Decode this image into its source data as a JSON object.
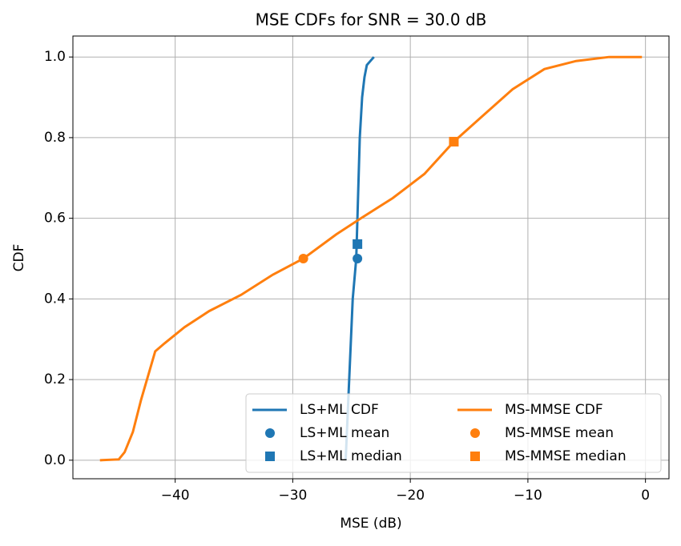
{
  "chart_data": {
    "type": "line",
    "title": "MSE CDFs for SNR = 30.0 dB",
    "x_label": "MSE (dB)",
    "y_label": "CDF",
    "xlim": [
      -48.7,
      2
    ],
    "ylim": [
      -0.046,
      1.052
    ],
    "xticks": [
      {
        "value": -40,
        "label": "−40"
      },
      {
        "value": -30,
        "label": "−30"
      },
      {
        "value": -20,
        "label": "−20"
      },
      {
        "value": -10,
        "label": "−10"
      },
      {
        "value": 0,
        "label": "0"
      }
    ],
    "yticks": [
      {
        "value": 0,
        "label": "0.0"
      },
      0.2,
      0.4,
      0.6,
      0.8,
      {
        "value": 1,
        "label": "1.0"
      }
    ],
    "grid": true,
    "legend": "lower right",
    "series": [
      {
        "name": "LS+ML CDF",
        "color": "#1f77b4",
        "marker": "line",
        "x": [
          -25.5,
          -25.2,
          -24.9,
          -24.6,
          -24.4,
          -24.3,
          -24.1,
          -23.9,
          -23.7,
          -23.1
        ],
        "y": [
          0,
          0.2,
          0.4,
          0.5,
          0.7,
          0.8,
          0.9,
          0.95,
          0.98,
          1.0
        ]
      },
      {
        "name": "LS+ML mean",
        "color": "#1f77b4",
        "marker": "circle",
        "x": [
          -24.5
        ],
        "y": [
          0.5
        ]
      },
      {
        "name": "LS+ML median",
        "color": "#1f77b4",
        "marker": "square",
        "x": [
          -24.5
        ],
        "y": [
          0.536
        ]
      },
      {
        "name": "MS-MMSE CDF",
        "color": "#ff7f0e",
        "marker": "line",
        "x": [
          -46.4,
          -44.8,
          -44.3,
          -43.6,
          -42.9,
          -42.2,
          -41.7,
          -40.9,
          -39.2,
          -37.1,
          -34.4,
          -31.7,
          -29.1,
          -26.3,
          -24.2,
          -21.5,
          -18.8,
          -16.3,
          -14.0,
          -11.3,
          -8.6,
          -5.9,
          -3.1,
          -0.3
        ],
        "y": [
          0,
          0.002,
          0.02,
          0.07,
          0.15,
          0.22,
          0.27,
          0.29,
          0.33,
          0.37,
          0.41,
          0.46,
          0.5,
          0.56,
          0.6,
          0.65,
          0.71,
          0.79,
          0.85,
          0.92,
          0.97,
          0.99,
          1.0,
          1.0
        ]
      },
      {
        "name": "MS-MMSE mean",
        "color": "#ff7f0e",
        "marker": "circle",
        "x": [
          -29.1
        ],
        "y": [
          0.5
        ]
      },
      {
        "name": "MS-MMSE median",
        "color": "#ff7f0e",
        "marker": "square",
        "x": [
          -16.3
        ],
        "y": [
          0.79
        ]
      }
    ]
  }
}
